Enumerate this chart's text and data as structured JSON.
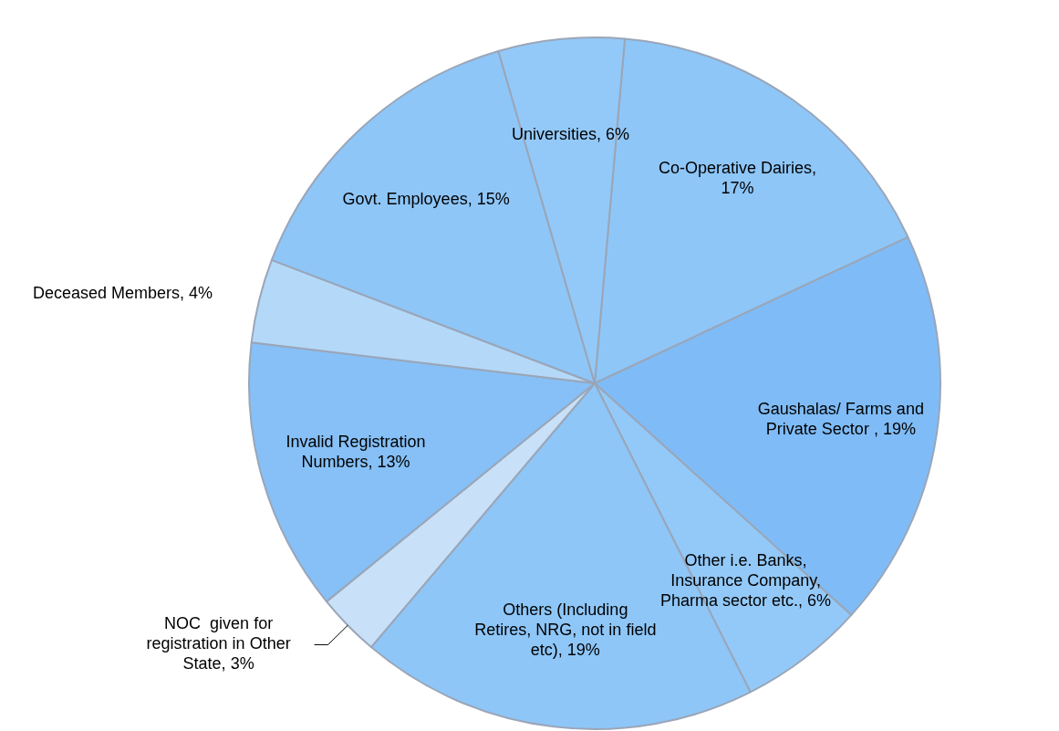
{
  "chart_data": {
    "type": "pie",
    "categories": [
      "Co-Operative Dairies, 17%",
      "Gaushalas/ Farms and Private Sector , 19%",
      "Other i.e. Banks, Insurance Company, Pharma sector etc., 6%",
      "Others (Including Retires, NRG, not in field etc), 19%",
      "NOC  given for registration in Other State, 3%",
      "Invalid Registration Numbers, 13%",
      "Deceased Members, 4%",
      "Govt. Employees, 15%",
      "Universities, 6%"
    ],
    "values": [
      17,
      19,
      6,
      19,
      3,
      13,
      4,
      15,
      6
    ],
    "colors": [
      "#8ec6f8",
      "#7fbcf7",
      "#93c9f8",
      "#8ec6f8",
      "#c8e0f8",
      "#86c0f7",
      "#b4d8f8",
      "#8ec6f8",
      "#93c9f8"
    ]
  }
}
